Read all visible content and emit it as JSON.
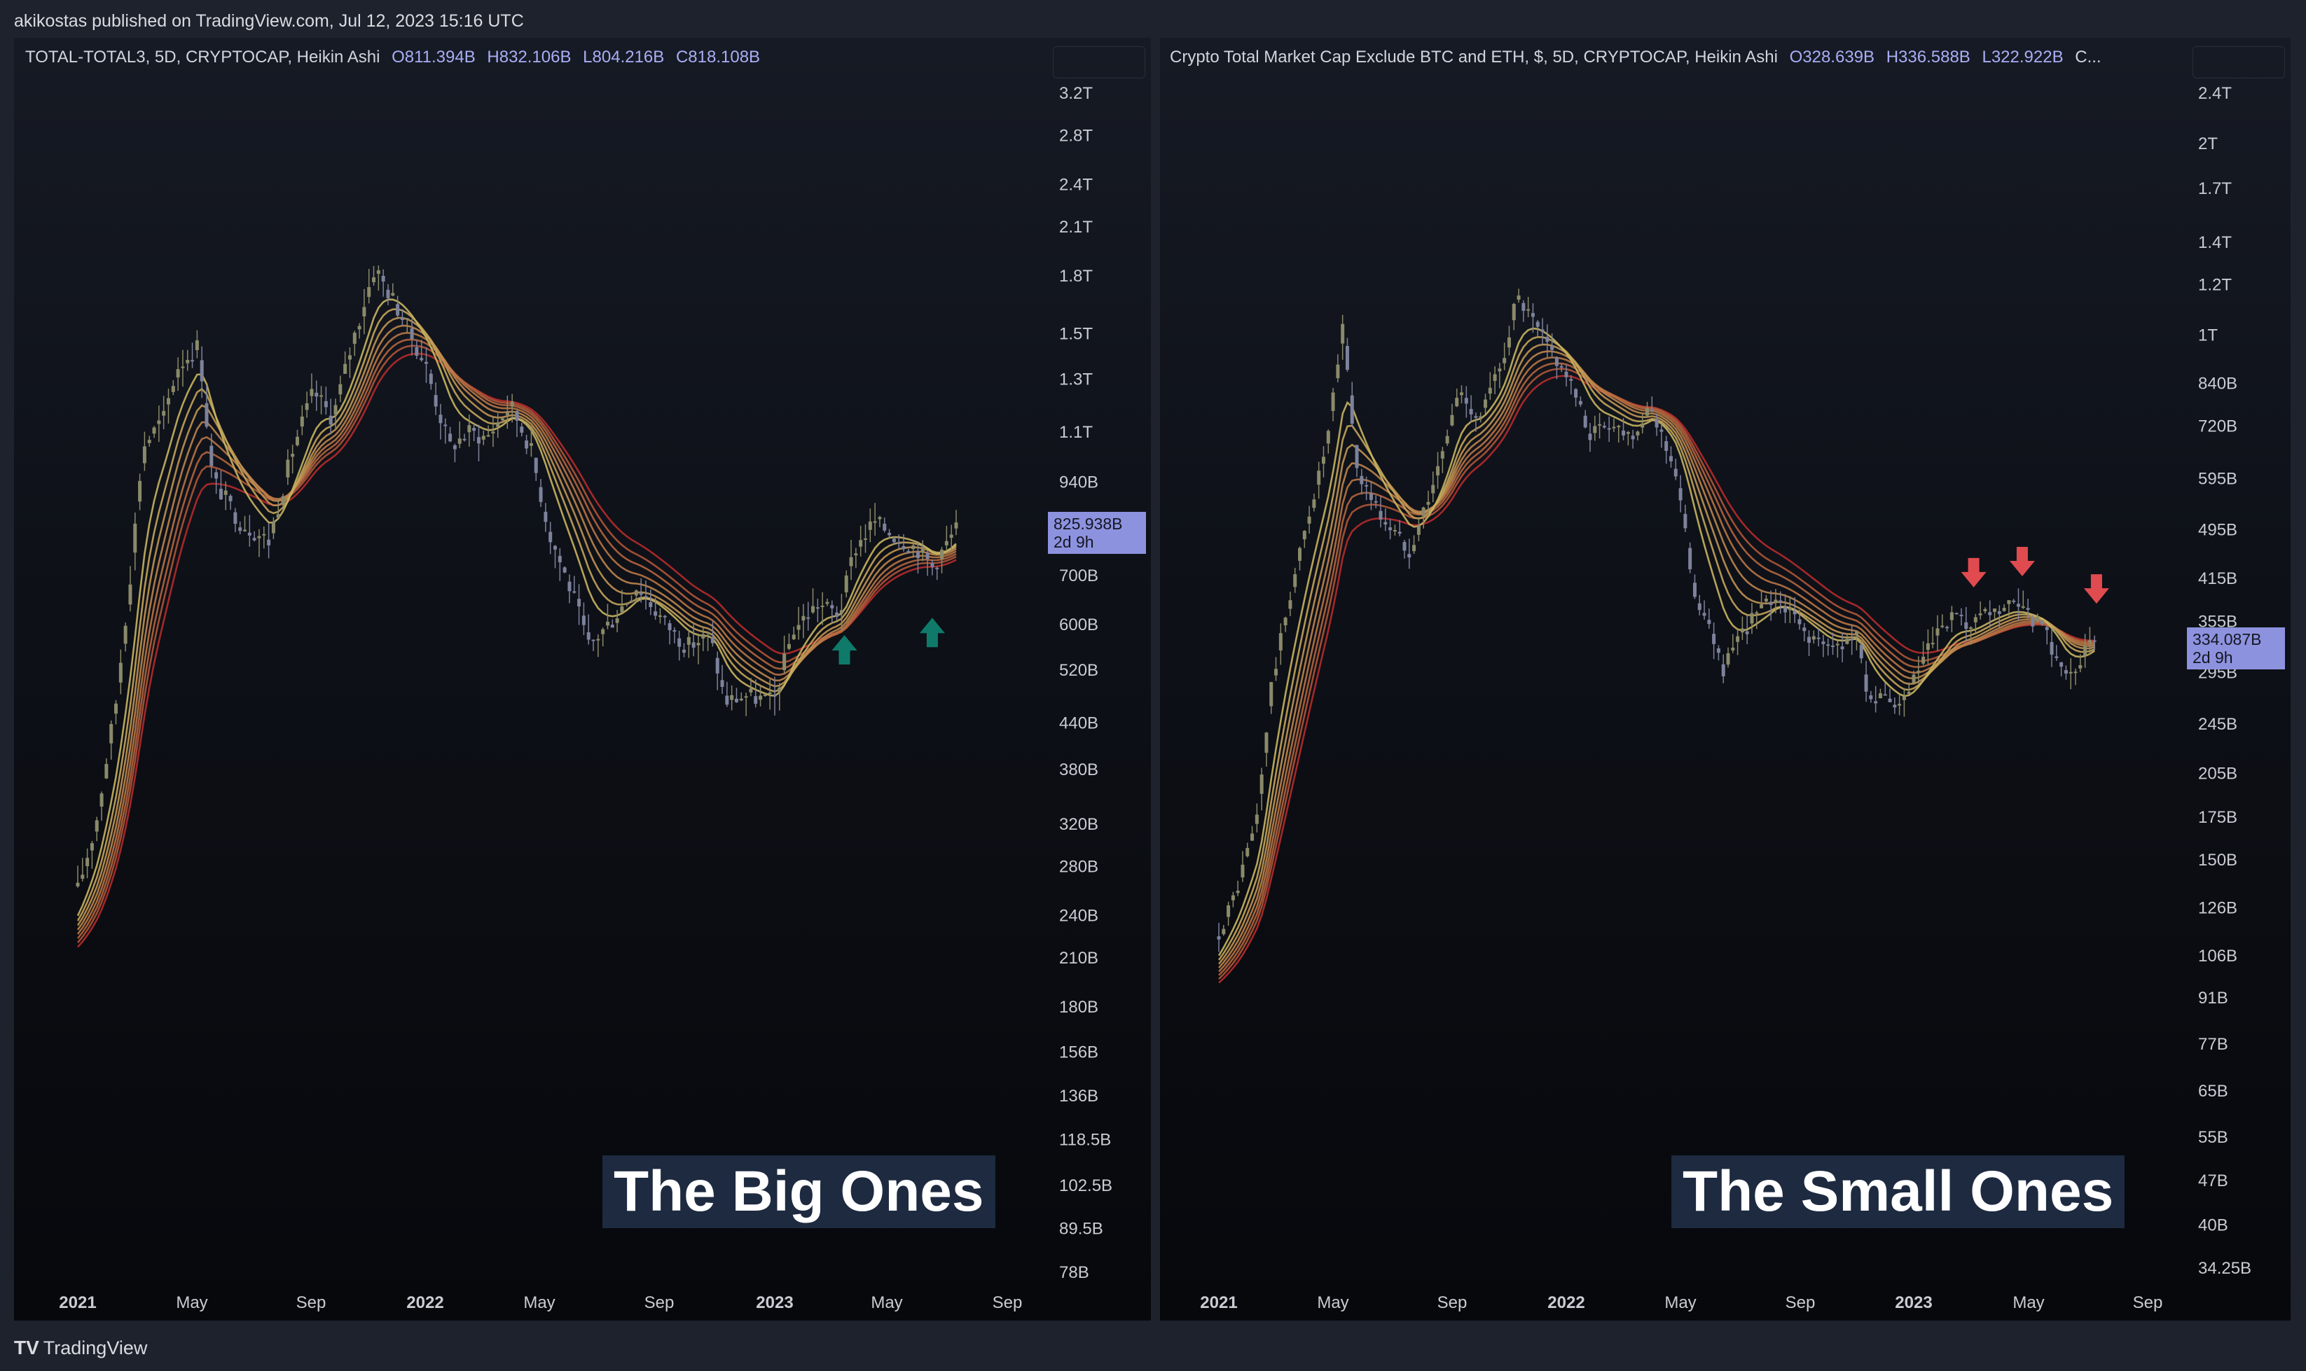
{
  "publisher_line": "akikostas published on TradingView.com, Jul 12, 2023 15:16 UTC",
  "footer_brand": "TradingView",
  "footer_logo": "TV",
  "colors": {
    "candle": "#7d829c",
    "candle_up": "#8a8a6a",
    "ribbon_outer": "#c8b560",
    "ribbon_inner": "#b52b2b",
    "arrow_up": "#0f7a6a",
    "arrow_down": "#e04b4f",
    "price_box": "#8d92df"
  },
  "charts": [
    {
      "legend": {
        "name": "TOTAL-TOTAL3, 5D, CRYPTOCAP, Heikin Ashi",
        "o": "O811.394B",
        "h": "H832.106B",
        "l": "L804.216B",
        "c": "C818.108B"
      },
      "title_box": "The Big Ones",
      "price_label": {
        "value": "825.938B",
        "countdown": "2d 9h"
      }
    },
    {
      "legend": {
        "name": "Crypto Total Market Cap Exclude BTC and ETH, $, 5D, CRYPTOCAP, Heikin Ashi",
        "o": "O328.639B",
        "h": "H336.588B",
        "l": "L322.922B",
        "c": "C..."
      },
      "title_box": "The Small Ones",
      "price_label": {
        "value": "334.087B",
        "countdown": "2d 9h"
      }
    }
  ],
  "chart_data": [
    {
      "type": "candlestick",
      "title": "TOTAL-TOTAL3, 5D, CRYPTOCAP, Heikin Ashi",
      "y_scale": "log",
      "y_ticks": [
        "3.2T",
        "2.8T",
        "2.4T",
        "2.1T",
        "1.8T",
        "1.5T",
        "1.3T",
        "1.1T",
        "940B",
        "700B",
        "600B",
        "520B",
        "440B",
        "380B",
        "320B",
        "280B",
        "240B",
        "210B",
        "180B",
        "156B",
        "136B",
        "118.5B",
        "102.5B",
        "89.5B",
        "78B"
      ],
      "x_ticks": [
        "2021",
        "May",
        "Sep",
        "2022",
        "May",
        "Sep",
        "2023",
        "May",
        "Sep"
      ],
      "close_path_B": [
        [
          "2021-01-01",
          260
        ],
        [
          "2021-01-20",
          320
        ],
        [
          "2021-02-10",
          470
        ],
        [
          "2021-02-25",
          700
        ],
        [
          "2021-03-10",
          1050
        ],
        [
          "2021-04-01",
          1150
        ],
        [
          "2021-04-15",
          1350
        ],
        [
          "2021-05-08",
          1450
        ],
        [
          "2021-05-22",
          950
        ],
        [
          "2021-06-20",
          830
        ],
        [
          "2021-07-20",
          780
        ],
        [
          "2021-08-15",
          1050
        ],
        [
          "2021-09-05",
          1250
        ],
        [
          "2021-09-25",
          1150
        ],
        [
          "2021-10-15",
          1450
        ],
        [
          "2021-11-08",
          1850
        ],
        [
          "2021-12-05",
          1600
        ],
        [
          "2022-01-01",
          1350
        ],
        [
          "2022-01-25",
          1050
        ],
        [
          "2022-02-15",
          1100
        ],
        [
          "2022-03-05",
          1080
        ],
        [
          "2022-03-30",
          1200
        ],
        [
          "2022-04-20",
          1050
        ],
        [
          "2022-05-10",
          800
        ],
        [
          "2022-06-05",
          650
        ],
        [
          "2022-06-20",
          560
        ],
        [
          "2022-07-15",
          610
        ],
        [
          "2022-08-10",
          680
        ],
        [
          "2022-09-05",
          610
        ],
        [
          "2022-10-01",
          560
        ],
        [
          "2022-10-25",
          580
        ],
        [
          "2022-11-10",
          470
        ],
        [
          "2022-12-01",
          480
        ],
        [
          "2022-12-31",
          470
        ],
        [
          "2023-01-20",
          590
        ],
        [
          "2023-02-15",
          640
        ],
        [
          "2023-03-10",
          620
        ],
        [
          "2023-03-25",
          760
        ],
        [
          "2023-04-15",
          830
        ],
        [
          "2023-05-10",
          790
        ],
        [
          "2023-06-01",
          760
        ],
        [
          "2023-06-15",
          720
        ],
        [
          "2023-07-12",
          818
        ]
      ],
      "ribbon": {
        "lines": 8,
        "colors_outer_to_inner": [
          "#c8b560",
          "#c4a55a",
          "#c09553",
          "#bc854c",
          "#b87545",
          "#b4653e",
          "#b05537",
          "#b52b2b"
        ]
      },
      "arrows": [
        {
          "date": "2023-03-15",
          "direction": "up"
        },
        {
          "date": "2023-06-15",
          "direction": "up"
        }
      ]
    },
    {
      "type": "candlestick",
      "title": "Crypto Total Market Cap Exclude BTC and ETH, $, 5D, CRYPTOCAP, Heikin Ashi",
      "y_scale": "log",
      "y_ticks": [
        "2.4T",
        "2T",
        "1.7T",
        "1.4T",
        "1.2T",
        "1T",
        "840B",
        "720B",
        "595B",
        "495B",
        "415B",
        "355B",
        "295B",
        "245B",
        "205B",
        "175B",
        "150B",
        "126B",
        "106B",
        "91B",
        "77B",
        "65B",
        "55B",
        "47B",
        "40B",
        "34.25B"
      ],
      "x_ticks": [
        "2021",
        "May",
        "Sep",
        "2022",
        "May",
        "Sep",
        "2023",
        "May",
        "Sep"
      ],
      "close_path_B": [
        [
          "2021-01-01",
          115
        ],
        [
          "2021-01-20",
          135
        ],
        [
          "2021-02-10",
          175
        ],
        [
          "2021-02-25",
          280
        ],
        [
          "2021-03-15",
          380
        ],
        [
          "2021-04-05",
          520
        ],
        [
          "2021-04-25",
          680
        ],
        [
          "2021-05-12",
          1050
        ],
        [
          "2021-05-25",
          620
        ],
        [
          "2021-06-20",
          520
        ],
        [
          "2021-07-20",
          460
        ],
        [
          "2021-08-20",
          620
        ],
        [
          "2021-09-10",
          820
        ],
        [
          "2021-10-01",
          740
        ],
        [
          "2021-10-25",
          900
        ],
        [
          "2021-11-10",
          1150
        ],
        [
          "2021-12-05",
          1000
        ],
        [
          "2022-01-01",
          870
        ],
        [
          "2022-01-25",
          700
        ],
        [
          "2022-02-15",
          730
        ],
        [
          "2022-03-10",
          700
        ],
        [
          "2022-04-01",
          760
        ],
        [
          "2022-04-25",
          620
        ],
        [
          "2022-05-15",
          400
        ],
        [
          "2022-06-15",
          300
        ],
        [
          "2022-07-15",
          360
        ],
        [
          "2022-08-10",
          390
        ],
        [
          "2022-09-10",
          340
        ],
        [
          "2022-10-05",
          320
        ],
        [
          "2022-11-01",
          340
        ],
        [
          "2022-11-15",
          270
        ],
        [
          "2022-12-20",
          260
        ],
        [
          "2023-01-15",
          320
        ],
        [
          "2023-02-10",
          360
        ],
        [
          "2023-03-01",
          345
        ],
        [
          "2023-03-20",
          365
        ],
        [
          "2023-04-15",
          375
        ],
        [
          "2023-05-15",
          350
        ],
        [
          "2023-06-10",
          290
        ],
        [
          "2023-06-25",
          310
        ],
        [
          "2023-07-12",
          334
        ]
      ],
      "ribbon": {
        "lines": 8,
        "colors_outer_to_inner": [
          "#c8b560",
          "#c4a55a",
          "#c09553",
          "#bc854c",
          "#b87545",
          "#b4653e",
          "#b05537",
          "#b52b2b"
        ]
      },
      "arrows": [
        {
          "date": "2023-03-05",
          "direction": "down"
        },
        {
          "date": "2023-04-25",
          "direction": "down"
        },
        {
          "date": "2023-07-12",
          "direction": "down"
        }
      ]
    }
  ]
}
